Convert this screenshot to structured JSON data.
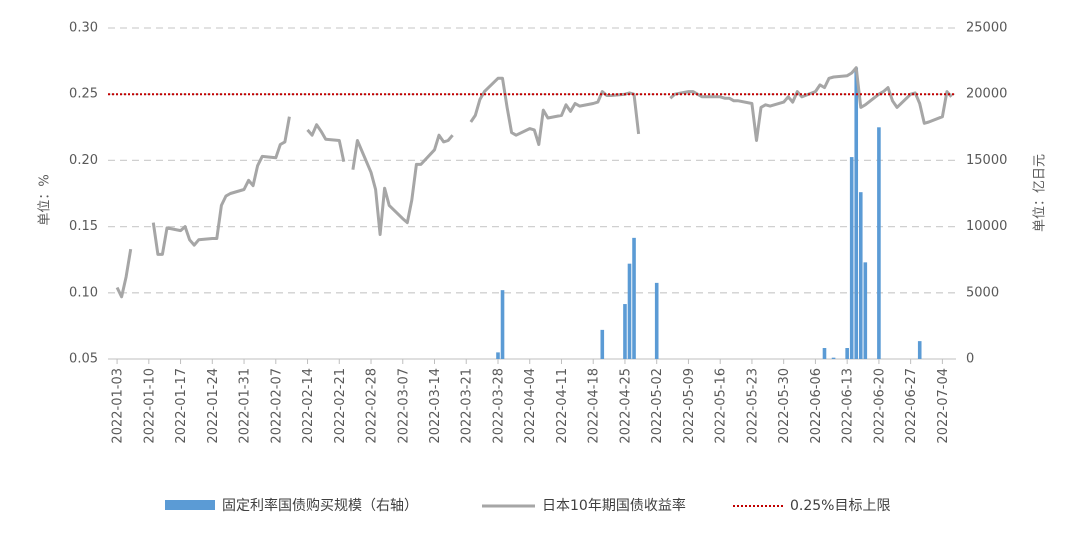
{
  "chart_data": {
    "type": "combo",
    "y_label": "单位：%",
    "y2_label": "单位：亿日元",
    "xlim": [
      "2022-01-01",
      "2022-07-07"
    ],
    "xticks": [
      "2022-01-03",
      "2022-01-10",
      "2022-01-17",
      "2022-01-24",
      "2022-01-31",
      "2022-02-07",
      "2022-02-14",
      "2022-02-21",
      "2022-02-28",
      "2022-03-07",
      "2022-03-14",
      "2022-03-21",
      "2022-03-28",
      "2022-04-04",
      "2022-04-11",
      "2022-04-18",
      "2022-04-25",
      "2022-05-02",
      "2022-05-09",
      "2022-05-16",
      "2022-05-23",
      "2022-05-30",
      "2022-06-06",
      "2022-06-13",
      "2022-06-20",
      "2022-06-27",
      "2022-07-04"
    ],
    "ylim": [
      0.05,
      0.3
    ],
    "yticks": [
      0.05,
      {
        "value": 0.1,
        "label": "0.10"
      },
      0.15,
      {
        "value": 0.2,
        "label": "0.20"
      },
      0.25,
      {
        "value": 0.3,
        "label": "0.30"
      }
    ],
    "y2lim": [
      0,
      25000
    ],
    "y2ticks": [
      0,
      5000,
      10000,
      15000,
      20000,
      25000
    ],
    "grid": true,
    "x": [
      "2022-01-03",
      "2022-01-04",
      "2022-01-05",
      "2022-01-06",
      "2022-01-07",
      "2022-01-11",
      "2022-01-12",
      "2022-01-13",
      "2022-01-14",
      "2022-01-17",
      "2022-01-18",
      "2022-01-19",
      "2022-01-20",
      "2022-01-21",
      "2022-01-24",
      "2022-01-25",
      "2022-01-26",
      "2022-01-27",
      "2022-01-28",
      "2022-01-31",
      "2022-02-01",
      "2022-02-02",
      "2022-02-03",
      "2022-02-04",
      "2022-02-07",
      "2022-02-08",
      "2022-02-09",
      "2022-02-10",
      "2022-02-11",
      "2022-02-14",
      "2022-02-15",
      "2022-02-16",
      "2022-02-17",
      "2022-02-18",
      "2022-02-21",
      "2022-02-22",
      "2022-02-23",
      "2022-02-24",
      "2022-02-25",
      "2022-02-28",
      "2022-03-01",
      "2022-03-02",
      "2022-03-03",
      "2022-03-04",
      "2022-03-07",
      "2022-03-08",
      "2022-03-09",
      "2022-03-10",
      "2022-03-11",
      "2022-03-14",
      "2022-03-15",
      "2022-03-16",
      "2022-03-17",
      "2022-03-18",
      "2022-03-21",
      "2022-03-22",
      "2022-03-23",
      "2022-03-24",
      "2022-03-25",
      "2022-03-28",
      "2022-03-29",
      "2022-03-30",
      "2022-03-31",
      "2022-04-01",
      "2022-04-04",
      "2022-04-05",
      "2022-04-06",
      "2022-04-07",
      "2022-04-08",
      "2022-04-11",
      "2022-04-12",
      "2022-04-13",
      "2022-04-14",
      "2022-04-15",
      "2022-04-18",
      "2022-04-19",
      "2022-04-20",
      "2022-04-21",
      "2022-04-22",
      "2022-04-25",
      "2022-04-26",
      "2022-04-27",
      "2022-04-28",
      "2022-04-29",
      "2022-05-02",
      "2022-05-05",
      "2022-05-06",
      "2022-05-09",
      "2022-05-10",
      "2022-05-11",
      "2022-05-12",
      "2022-05-13",
      "2022-05-16",
      "2022-05-17",
      "2022-05-18",
      "2022-05-19",
      "2022-05-20",
      "2022-05-23",
      "2022-05-24",
      "2022-05-25",
      "2022-05-26",
      "2022-05-27",
      "2022-05-30",
      "2022-05-31",
      "2022-06-01",
      "2022-06-02",
      "2022-06-03",
      "2022-06-06",
      "2022-06-07",
      "2022-06-08",
      "2022-06-09",
      "2022-06-10",
      "2022-06-13",
      "2022-06-14",
      "2022-06-15",
      "2022-06-16",
      "2022-06-17",
      "2022-06-20",
      "2022-06-21",
      "2022-06-22",
      "2022-06-23",
      "2022-06-24",
      "2022-06-27",
      "2022-06-28",
      "2022-06-29",
      "2022-06-30",
      "2022-07-01",
      "2022-07-04",
      "2022-07-05",
      "2022-07-06"
    ],
    "series": [
      {
        "name": "固定利率国债购买规模（右轴）",
        "type": "bar",
        "axis": "y2",
        "color": "#5b9bd5",
        "values": [
          null,
          null,
          null,
          null,
          null,
          null,
          null,
          null,
          null,
          null,
          null,
          null,
          null,
          null,
          null,
          null,
          null,
          null,
          null,
          null,
          null,
          null,
          null,
          null,
          null,
          null,
          null,
          null,
          null,
          null,
          null,
          null,
          null,
          null,
          null,
          null,
          null,
          null,
          null,
          null,
          null,
          null,
          null,
          null,
          null,
          null,
          null,
          null,
          null,
          null,
          null,
          null,
          null,
          null,
          null,
          null,
          null,
          null,
          null,
          500,
          5200,
          null,
          null,
          null,
          null,
          null,
          null,
          null,
          null,
          null,
          null,
          null,
          null,
          null,
          null,
          null,
          2200,
          null,
          null,
          4150,
          7200,
          9150,
          null,
          null,
          5750,
          null,
          null,
          null,
          null,
          null,
          null,
          null,
          null,
          null,
          null,
          null,
          null,
          null,
          null,
          null,
          null,
          null,
          null,
          null,
          null,
          null,
          null,
          null,
          null,
          830,
          null,
          100,
          830,
          15250,
          22000,
          12600,
          7300,
          17500,
          null,
          null,
          null,
          null,
          null,
          null,
          1350,
          null,
          null,
          null,
          null,
          null
        ]
      },
      {
        "name": "日本10年期国债收益率",
        "type": "line",
        "color": "#a6a6a6",
        "values": [
          0.104,
          0.097,
          0.112,
          0.133,
          null,
          0.153,
          0.129,
          0.129,
          0.149,
          0.147,
          0.15,
          0.14,
          0.136,
          0.14,
          0.141,
          0.141,
          0.166,
          0.173,
          0.175,
          0.178,
          0.185,
          0.181,
          0.196,
          0.203,
          0.202,
          0.212,
          0.214,
          0.233,
          null,
          0.223,
          0.219,
          0.227,
          0.222,
          0.216,
          0.215,
          0.199,
          null,
          0.193,
          0.215,
          0.191,
          0.178,
          0.144,
          0.179,
          0.166,
          0.156,
          0.153,
          0.17,
          0.197,
          0.197,
          0.208,
          0.219,
          0.214,
          0.215,
          0.219,
          null,
          0.229,
          0.234,
          0.246,
          0.252,
          0.262,
          0.262,
          0.24,
          0.221,
          0.219,
          0.224,
          0.223,
          0.212,
          0.238,
          0.232,
          0.234,
          0.242,
          0.237,
          0.243,
          0.241,
          0.243,
          0.244,
          0.252,
          0.249,
          0.249,
          0.25,
          0.251,
          0.25,
          0.22,
          null,
          null,
          0.247,
          0.25,
          0.252,
          0.252,
          0.25,
          0.248,
          0.248,
          0.248,
          0.247,
          0.247,
          0.245,
          0.245,
          0.243,
          0.215,
          0.24,
          0.242,
          0.241,
          0.244,
          0.248,
          0.244,
          0.252,
          0.248,
          0.252,
          0.257,
          0.255,
          0.262,
          0.263,
          0.264,
          0.266,
          0.27,
          0.24,
          0.242,
          0.25,
          0.252,
          0.255,
          0.245,
          0.24,
          0.25,
          0.251,
          0.243,
          0.228,
          0.229,
          0.233,
          0.252,
          0.248
        ]
      }
    ],
    "reference_lines": [
      {
        "value": 0.25,
        "label": "0.25%目标上限",
        "color": "#c00000"
      }
    ]
  }
}
